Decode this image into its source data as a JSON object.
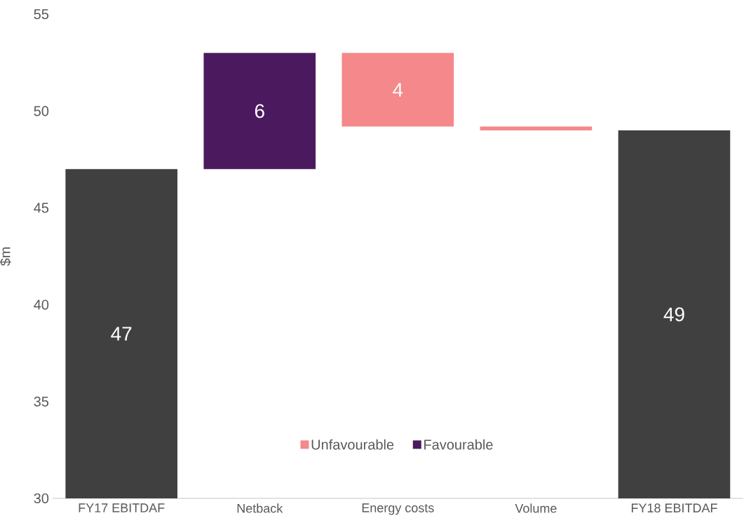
{
  "chart_data": {
    "type": "bar",
    "ylabel": "$m",
    "categories": [
      "FY17 EBITDAF",
      "Netback",
      "Energy costs",
      "Volume",
      "FY18 EBITDAF"
    ],
    "series": [
      {
        "color": "#404040",
        "values": [
          47,
          null,
          null,
          null,
          49
        ],
        "value_labels": [
          "47",
          null,
          null,
          null,
          "49"
        ]
      },
      {
        "name": "Unfavourable",
        "color": "#f4888a",
        "values": [
          null,
          null,
          3.8,
          0.2,
          null
        ],
        "base": [
          null,
          null,
          49.2,
          49,
          null
        ],
        "value_labels": [
          null,
          null,
          "4",
          null,
          null
        ]
      },
      {
        "name": "Favourable",
        "color": "#4b1a5e",
        "values": [
          null,
          6,
          null,
          null,
          null
        ],
        "base": [
          null,
          47,
          null,
          null,
          null
        ],
        "value_labels": [
          null,
          "6",
          null,
          null,
          null
        ]
      }
    ],
    "ylim": [
      30,
      55
    ],
    "yticks": [
      30,
      35,
      40,
      45,
      50,
      55
    ],
    "grid": false,
    "legend": "bottom"
  }
}
